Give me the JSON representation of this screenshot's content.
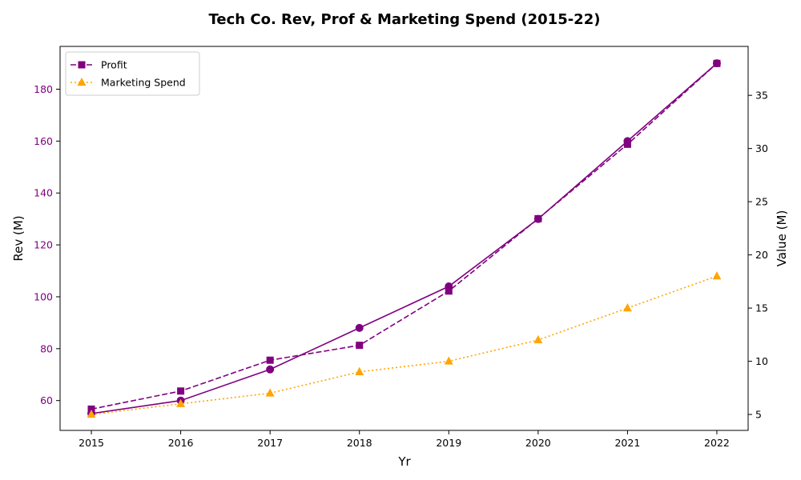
{
  "chart_data": {
    "type": "line",
    "title": "Tech Co. Rev, Prof & Marketing Spend (2015-22)",
    "xlabel": "Yr",
    "ylabel_left": "Rev (M)",
    "ylabel_right": "Value (M)",
    "x": [
      2015,
      2016,
      2017,
      2018,
      2019,
      2020,
      2021,
      2022
    ],
    "xlim": [
      2014.65,
      2022.35
    ],
    "ylim_left": [
      48.5,
      196.5
    ],
    "ylim_right": [
      3.5,
      39.6
    ],
    "yticks_left": [
      60,
      80,
      100,
      120,
      140,
      160,
      180
    ],
    "yticks_right": [
      5,
      10,
      15,
      20,
      25,
      30,
      35
    ],
    "grid": false,
    "legend_position": "top-left",
    "series": [
      {
        "axis": "left",
        "values": [
          55,
          60,
          72,
          88,
          104,
          130,
          160,
          190
        ],
        "color": "#800080",
        "linestyle": "solid",
        "marker": "circle"
      },
      {
        "name": "Profit",
        "axis": "right",
        "values": [
          5.5,
          7.2,
          10.1,
          11.5,
          16.6,
          23.4,
          30.4,
          38.0
        ],
        "color": "#800080",
        "linestyle": "dashed",
        "marker": "square"
      },
      {
        "name": "Marketing Spend",
        "axis": "right",
        "values": [
          5.0,
          6.0,
          7.0,
          9.0,
          10.0,
          12.0,
          15.0,
          18.0
        ],
        "color": "#FFA500",
        "linestyle": "dotted",
        "marker": "triangle"
      }
    ],
    "left_axis_color": "#800080",
    "right_axis_color": "#000000"
  }
}
